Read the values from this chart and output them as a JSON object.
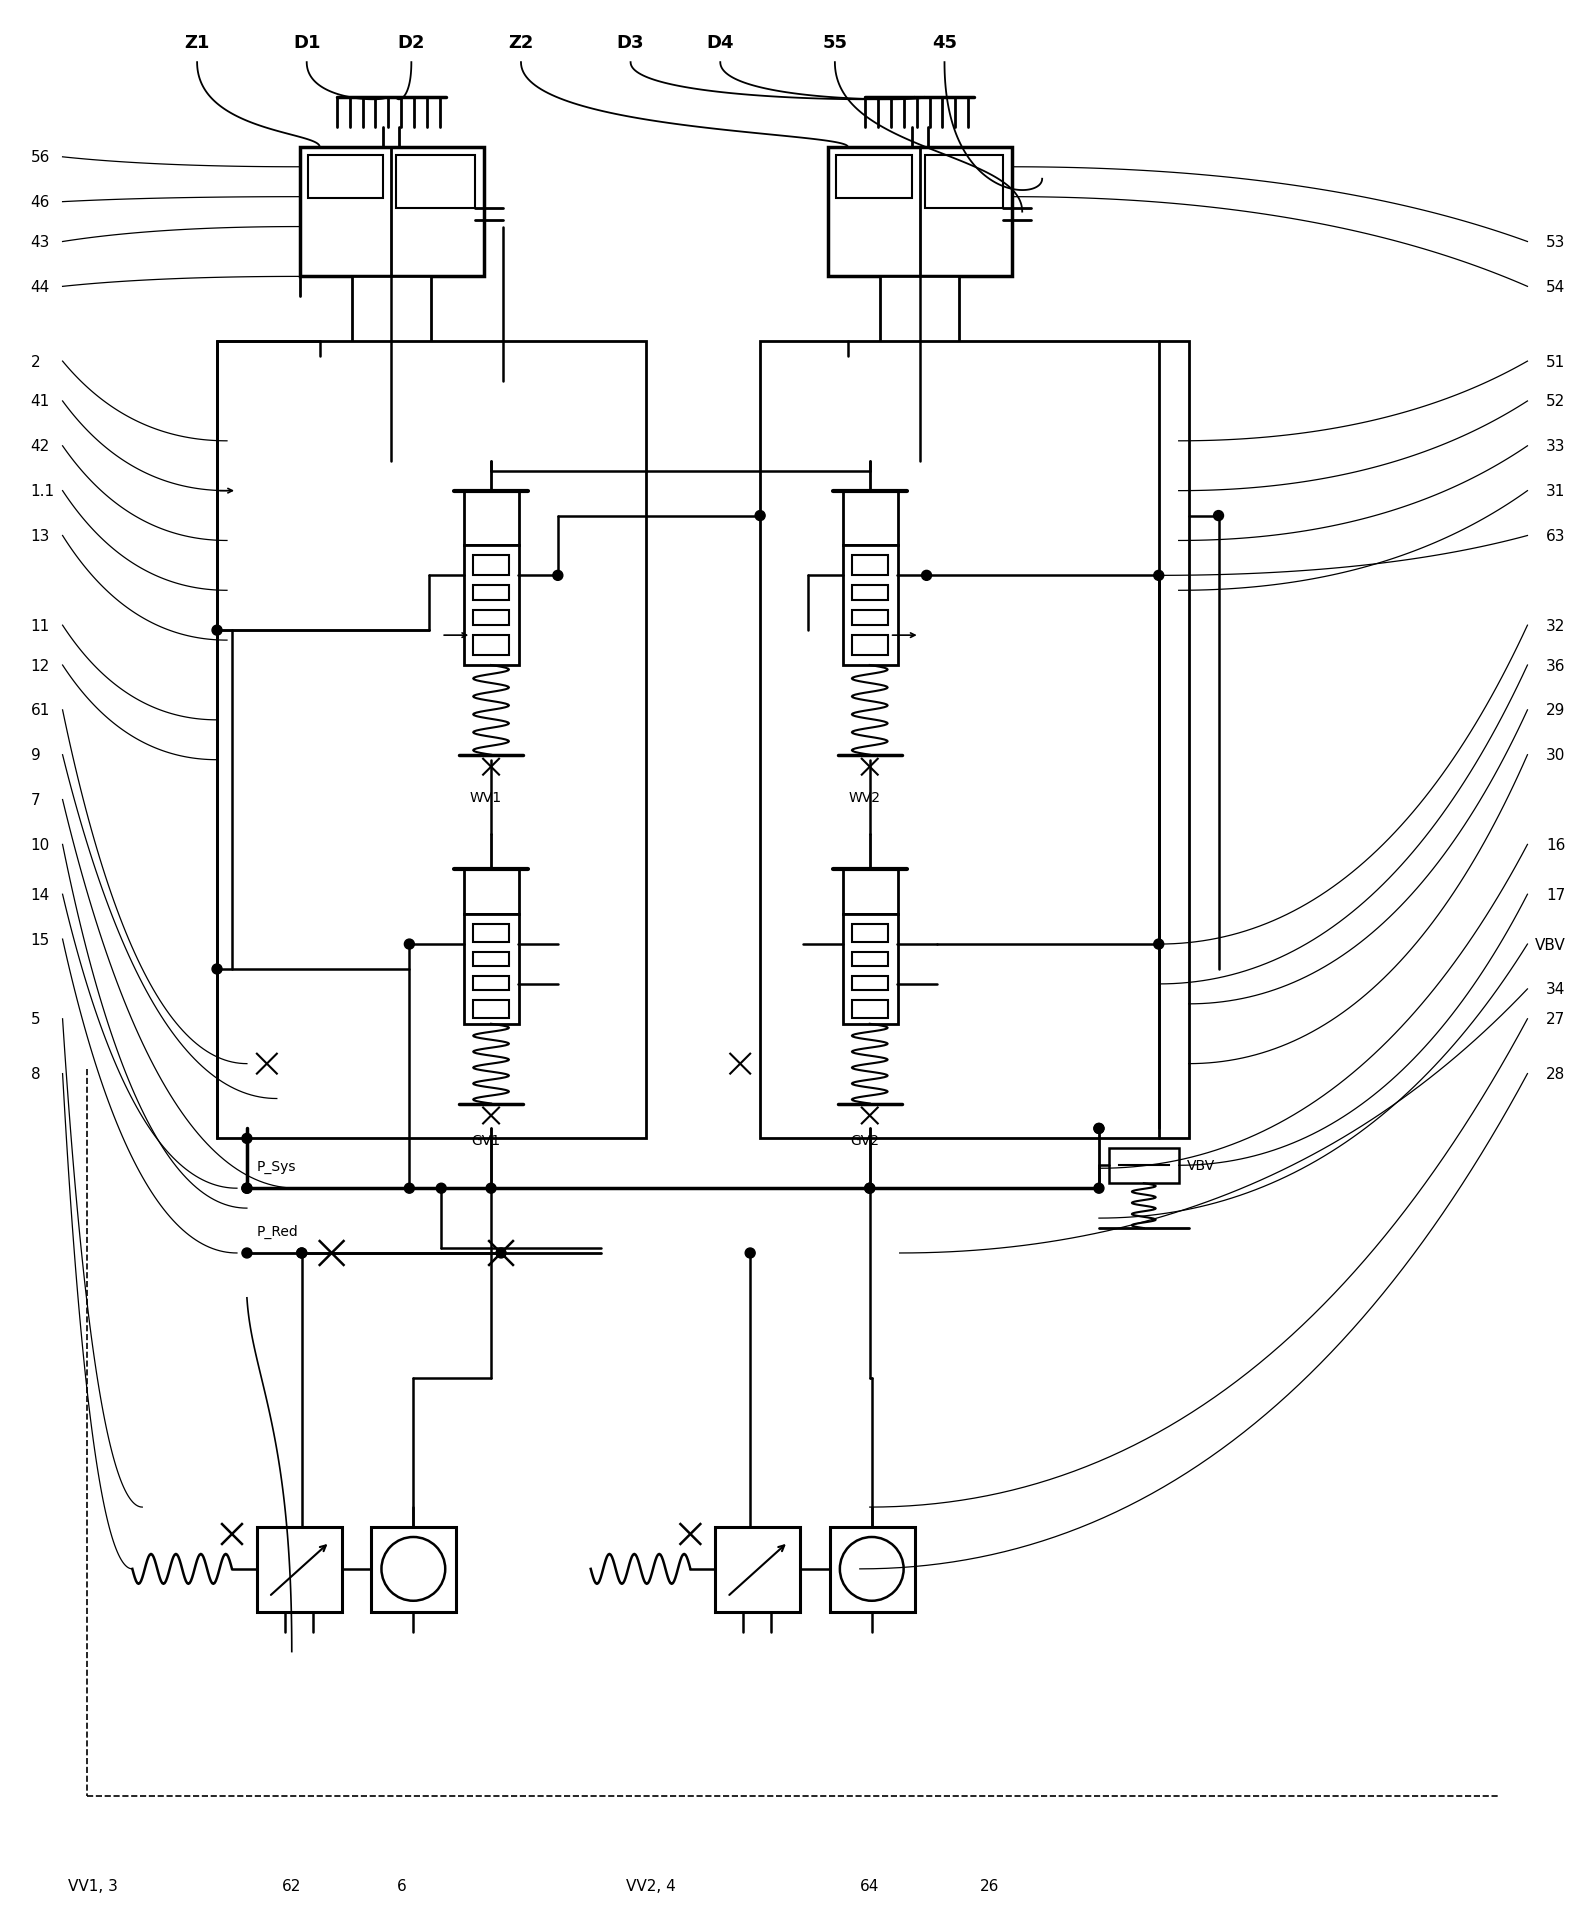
{
  "bg_color": "#ffffff",
  "line_color": "#000000",
  "figsize": [
    15.96,
    19.24
  ],
  "dpi": 100,
  "top_labels": [
    "Z1",
    "D1",
    "D2",
    "Z2",
    "D3",
    "D4",
    "55",
    "45"
  ],
  "left_labels": [
    "56",
    "46",
    "43",
    "44",
    "2",
    "41",
    "42",
    "1.1",
    "13",
    "11",
    "12",
    "61",
    "9",
    "7",
    "10",
    "14",
    "15",
    "5",
    "8"
  ],
  "right_labels": [
    "53",
    "54",
    "51",
    "52",
    "33",
    "31",
    "63",
    "32",
    "36",
    "29",
    "30",
    "16",
    "17",
    "VBV",
    "34",
    "27",
    "28"
  ],
  "bottom_labels": [
    "VV1, 3",
    "62",
    "6",
    "VV2, 4",
    "64",
    "26"
  ],
  "wv1": "WV1",
  "wv2": "WV2",
  "gv1": "GV1",
  "gv2": "GV2",
  "psys": "P_Sys",
  "pred": "P_Red",
  "vbv": "VBV"
}
